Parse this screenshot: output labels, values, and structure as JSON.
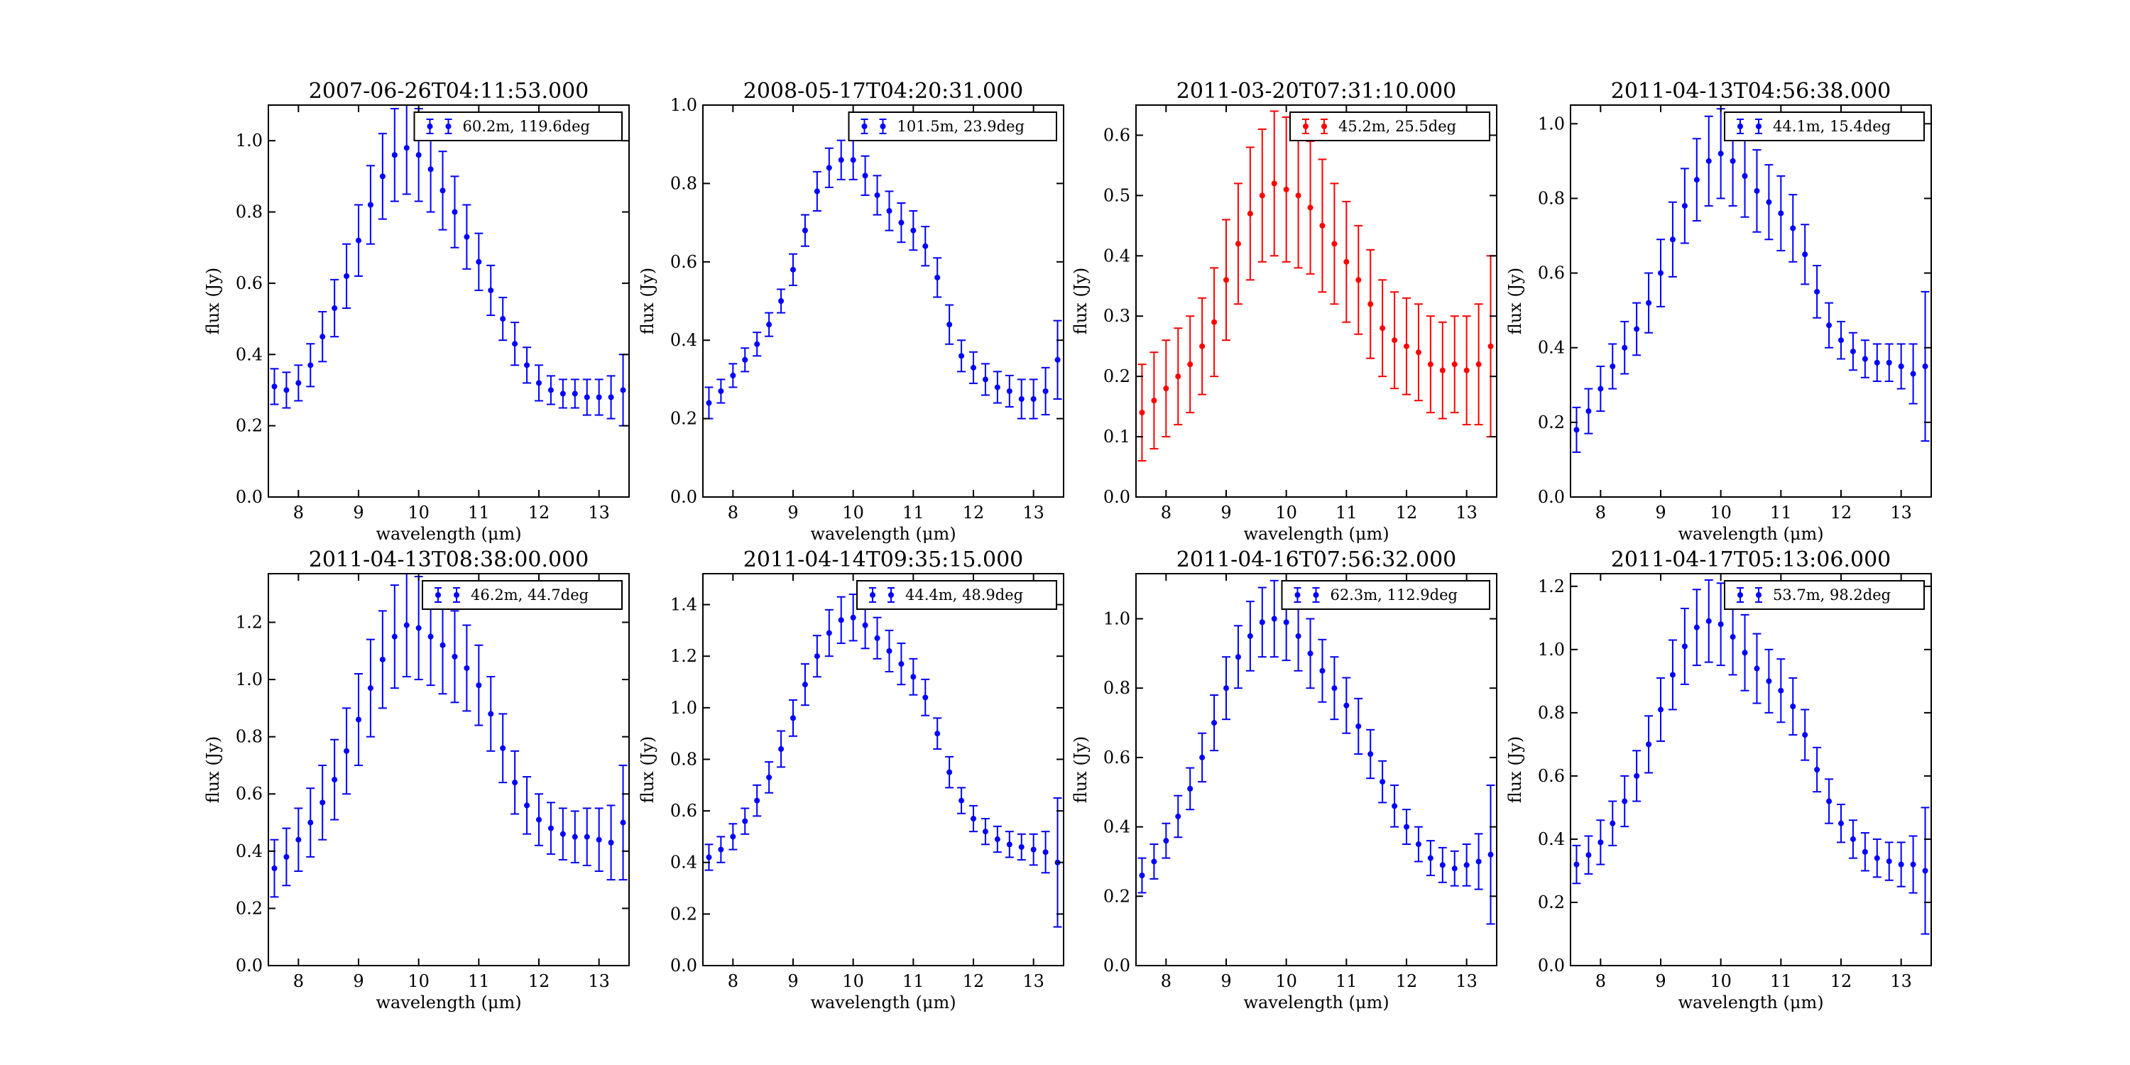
{
  "chart_data": [
    {
      "type": "scatter",
      "title": "2007-06-26T04:11:53.000",
      "xlabel": "wavelength (μm)",
      "ylabel": "flux (Jy)",
      "xlim": [
        7.5,
        13.5
      ],
      "ylim": [
        0.0,
        1.1
      ],
      "xticks": [
        "8",
        "9",
        "10",
        "11",
        "12",
        "13"
      ],
      "yticks": [
        "0.0",
        "0.2",
        "0.4",
        "0.6",
        "0.8",
        "1.0"
      ],
      "grid": false,
      "legend_position": "upper-right",
      "series": [
        {
          "name": "60.2m, 119.6deg",
          "color": "#0000ff",
          "x": [
            7.6,
            7.8,
            8.0,
            8.2,
            8.4,
            8.6,
            8.8,
            9.0,
            9.2,
            9.4,
            9.6,
            9.8,
            10.0,
            10.2,
            10.4,
            10.6,
            10.8,
            11.0,
            11.2,
            11.4,
            11.6,
            11.8,
            12.0,
            12.2,
            12.4,
            12.6,
            12.8,
            13.0,
            13.2,
            13.4
          ],
          "y": [
            0.31,
            0.3,
            0.32,
            0.37,
            0.45,
            0.53,
            0.62,
            0.72,
            0.82,
            0.9,
            0.96,
            0.98,
            0.96,
            0.92,
            0.86,
            0.8,
            0.73,
            0.66,
            0.58,
            0.5,
            0.43,
            0.37,
            0.32,
            0.3,
            0.29,
            0.29,
            0.28,
            0.28,
            0.28,
            0.3
          ],
          "err": [
            0.05,
            0.05,
            0.05,
            0.06,
            0.07,
            0.08,
            0.09,
            0.1,
            0.11,
            0.12,
            0.13,
            0.13,
            0.13,
            0.12,
            0.11,
            0.1,
            0.09,
            0.08,
            0.07,
            0.06,
            0.06,
            0.05,
            0.05,
            0.04,
            0.04,
            0.04,
            0.05,
            0.05,
            0.06,
            0.1
          ]
        }
      ]
    },
    {
      "type": "scatter",
      "title": "2008-05-17T04:20:31.000",
      "xlabel": "wavelength (μm)",
      "ylabel": "flux (Jy)",
      "xlim": [
        7.5,
        13.5
      ],
      "ylim": [
        0.0,
        1.0
      ],
      "xticks": [
        "8",
        "9",
        "10",
        "11",
        "12",
        "13"
      ],
      "yticks": [
        "0.0",
        "0.2",
        "0.4",
        "0.6",
        "0.8",
        "1.0"
      ],
      "grid": false,
      "legend_position": "upper-right",
      "series": [
        {
          "name": "101.5m, 23.9deg",
          "color": "#0000ff",
          "x": [
            7.6,
            7.8,
            8.0,
            8.2,
            8.4,
            8.6,
            8.8,
            9.0,
            9.2,
            9.4,
            9.6,
            9.8,
            10.0,
            10.2,
            10.4,
            10.6,
            10.8,
            11.0,
            11.2,
            11.4,
            11.6,
            11.8,
            12.0,
            12.2,
            12.4,
            12.6,
            12.8,
            13.0,
            13.2,
            13.4
          ],
          "y": [
            0.24,
            0.27,
            0.31,
            0.35,
            0.39,
            0.44,
            0.5,
            0.58,
            0.68,
            0.78,
            0.84,
            0.86,
            0.86,
            0.82,
            0.77,
            0.73,
            0.7,
            0.68,
            0.64,
            0.56,
            0.44,
            0.36,
            0.33,
            0.3,
            0.28,
            0.27,
            0.25,
            0.25,
            0.27,
            0.35
          ],
          "err": [
            0.04,
            0.03,
            0.03,
            0.03,
            0.03,
            0.03,
            0.03,
            0.04,
            0.04,
            0.05,
            0.05,
            0.05,
            0.05,
            0.05,
            0.05,
            0.05,
            0.05,
            0.05,
            0.05,
            0.05,
            0.05,
            0.04,
            0.04,
            0.04,
            0.04,
            0.04,
            0.05,
            0.05,
            0.06,
            0.1
          ]
        }
      ]
    },
    {
      "type": "scatter",
      "title": "2011-03-20T07:31:10.000",
      "xlabel": "wavelength (μm)",
      "ylabel": "flux (Jy)",
      "xlim": [
        7.5,
        13.5
      ],
      "ylim": [
        0.0,
        0.65
      ],
      "xticks": [
        "8",
        "9",
        "10",
        "11",
        "12",
        "13"
      ],
      "yticks": [
        "0.0",
        "0.1",
        "0.2",
        "0.3",
        "0.4",
        "0.5",
        "0.6"
      ],
      "grid": false,
      "legend_position": "upper-right",
      "series": [
        {
          "name": "45.2m, 25.5deg",
          "color": "#ff0000",
          "x": [
            7.6,
            7.8,
            8.0,
            8.2,
            8.4,
            8.6,
            8.8,
            9.0,
            9.2,
            9.4,
            9.6,
            9.8,
            10.0,
            10.2,
            10.4,
            10.6,
            10.8,
            11.0,
            11.2,
            11.4,
            11.6,
            11.8,
            12.0,
            12.2,
            12.4,
            12.6,
            12.8,
            13.0,
            13.2,
            13.4
          ],
          "y": [
            0.14,
            0.16,
            0.18,
            0.2,
            0.22,
            0.25,
            0.29,
            0.36,
            0.42,
            0.47,
            0.5,
            0.52,
            0.51,
            0.5,
            0.48,
            0.45,
            0.42,
            0.39,
            0.36,
            0.32,
            0.28,
            0.26,
            0.25,
            0.24,
            0.22,
            0.21,
            0.22,
            0.21,
            0.22,
            0.25
          ],
          "err": [
            0.08,
            0.08,
            0.08,
            0.08,
            0.08,
            0.08,
            0.09,
            0.1,
            0.1,
            0.11,
            0.11,
            0.12,
            0.12,
            0.12,
            0.11,
            0.11,
            0.1,
            0.1,
            0.09,
            0.09,
            0.08,
            0.08,
            0.08,
            0.08,
            0.08,
            0.08,
            0.08,
            0.09,
            0.1,
            0.15
          ]
        }
      ]
    },
    {
      "type": "scatter",
      "title": "2011-04-13T04:56:38.000",
      "xlabel": "wavelength (μm)",
      "ylabel": "flux (Jy)",
      "xlim": [
        7.5,
        13.5
      ],
      "ylim": [
        0.0,
        1.05
      ],
      "xticks": [
        "8",
        "9",
        "10",
        "11",
        "12",
        "13"
      ],
      "yticks": [
        "0.0",
        "0.2",
        "0.4",
        "0.6",
        "0.8",
        "1.0"
      ],
      "grid": false,
      "legend_position": "upper-right",
      "series": [
        {
          "name": "44.1m, 15.4deg",
          "color": "#0000ff",
          "x": [
            7.6,
            7.8,
            8.0,
            8.2,
            8.4,
            8.6,
            8.8,
            9.0,
            9.2,
            9.4,
            9.6,
            9.8,
            10.0,
            10.2,
            10.4,
            10.6,
            10.8,
            11.0,
            11.2,
            11.4,
            11.6,
            11.8,
            12.0,
            12.2,
            12.4,
            12.6,
            12.8,
            13.0,
            13.2,
            13.4
          ],
          "y": [
            0.18,
            0.23,
            0.29,
            0.35,
            0.4,
            0.45,
            0.52,
            0.6,
            0.69,
            0.78,
            0.85,
            0.9,
            0.92,
            0.9,
            0.86,
            0.82,
            0.79,
            0.76,
            0.72,
            0.65,
            0.55,
            0.46,
            0.42,
            0.39,
            0.37,
            0.36,
            0.36,
            0.35,
            0.33,
            0.35
          ],
          "err": [
            0.06,
            0.06,
            0.06,
            0.06,
            0.07,
            0.07,
            0.08,
            0.09,
            0.1,
            0.1,
            0.11,
            0.12,
            0.12,
            0.12,
            0.11,
            0.11,
            0.1,
            0.1,
            0.09,
            0.08,
            0.07,
            0.06,
            0.05,
            0.05,
            0.05,
            0.05,
            0.05,
            0.06,
            0.08,
            0.2
          ]
        }
      ]
    },
    {
      "type": "scatter",
      "title": "2011-04-13T08:38:00.000",
      "xlabel": "wavelength (μm)",
      "ylabel": "flux (Jy)",
      "xlim": [
        7.5,
        13.5
      ],
      "ylim": [
        0.0,
        1.37
      ],
      "xticks": [
        "8",
        "9",
        "10",
        "11",
        "12",
        "13"
      ],
      "yticks": [
        "0.0",
        "0.2",
        "0.4",
        "0.6",
        "0.8",
        "1.0",
        "1.2"
      ],
      "grid": false,
      "legend_position": "upper-right",
      "series": [
        {
          "name": "46.2m, 44.7deg",
          "color": "#0000ff",
          "x": [
            7.6,
            7.8,
            8.0,
            8.2,
            8.4,
            8.6,
            8.8,
            9.0,
            9.2,
            9.4,
            9.6,
            9.8,
            10.0,
            10.2,
            10.4,
            10.6,
            10.8,
            11.0,
            11.2,
            11.4,
            11.6,
            11.8,
            12.0,
            12.2,
            12.4,
            12.6,
            12.8,
            13.0,
            13.2,
            13.4
          ],
          "y": [
            0.34,
            0.38,
            0.44,
            0.5,
            0.57,
            0.65,
            0.75,
            0.86,
            0.97,
            1.07,
            1.15,
            1.19,
            1.18,
            1.15,
            1.12,
            1.08,
            1.04,
            0.98,
            0.88,
            0.76,
            0.64,
            0.56,
            0.51,
            0.48,
            0.46,
            0.45,
            0.45,
            0.44,
            0.43,
            0.5
          ],
          "err": [
            0.1,
            0.1,
            0.11,
            0.12,
            0.13,
            0.14,
            0.15,
            0.16,
            0.17,
            0.17,
            0.18,
            0.18,
            0.18,
            0.17,
            0.17,
            0.16,
            0.15,
            0.14,
            0.13,
            0.12,
            0.11,
            0.1,
            0.09,
            0.09,
            0.09,
            0.09,
            0.1,
            0.11,
            0.13,
            0.2
          ]
        }
      ]
    },
    {
      "type": "scatter",
      "title": "2011-04-14T09:35:15.000",
      "xlabel": "wavelength (μm)",
      "ylabel": "flux (Jy)",
      "xlim": [
        7.5,
        13.5
      ],
      "ylim": [
        0.0,
        1.52
      ],
      "xticks": [
        "8",
        "9",
        "10",
        "11",
        "12",
        "13"
      ],
      "yticks": [
        "0.0",
        "0.2",
        "0.4",
        "0.6",
        "0.8",
        "1.0",
        "1.2",
        "1.4"
      ],
      "grid": false,
      "legend_position": "upper-right",
      "series": [
        {
          "name": "44.4m, 48.9deg",
          "color": "#0000ff",
          "x": [
            7.6,
            7.8,
            8.0,
            8.2,
            8.4,
            8.6,
            8.8,
            9.0,
            9.2,
            9.4,
            9.6,
            9.8,
            10.0,
            10.2,
            10.4,
            10.6,
            10.8,
            11.0,
            11.2,
            11.4,
            11.6,
            11.8,
            12.0,
            12.2,
            12.4,
            12.6,
            12.8,
            13.0,
            13.2,
            13.4
          ],
          "y": [
            0.42,
            0.45,
            0.5,
            0.56,
            0.64,
            0.73,
            0.84,
            0.96,
            1.09,
            1.2,
            1.29,
            1.34,
            1.35,
            1.32,
            1.27,
            1.22,
            1.17,
            1.12,
            1.04,
            0.9,
            0.75,
            0.64,
            0.57,
            0.52,
            0.49,
            0.47,
            0.46,
            0.45,
            0.44,
            0.4
          ],
          "err": [
            0.05,
            0.05,
            0.05,
            0.05,
            0.06,
            0.06,
            0.07,
            0.07,
            0.08,
            0.08,
            0.09,
            0.09,
            0.09,
            0.09,
            0.08,
            0.08,
            0.08,
            0.07,
            0.07,
            0.06,
            0.06,
            0.05,
            0.05,
            0.05,
            0.05,
            0.05,
            0.05,
            0.06,
            0.08,
            0.25
          ]
        }
      ]
    },
    {
      "type": "scatter",
      "title": "2011-04-16T07:56:32.000",
      "xlabel": "wavelength (μm)",
      "ylabel": "flux (Jy)",
      "xlim": [
        7.5,
        13.5
      ],
      "ylim": [
        0.0,
        1.13
      ],
      "xticks": [
        "8",
        "9",
        "10",
        "11",
        "12",
        "13"
      ],
      "yticks": [
        "0.0",
        "0.2",
        "0.4",
        "0.6",
        "0.8",
        "1.0"
      ],
      "grid": false,
      "legend_position": "upper-right",
      "series": [
        {
          "name": "62.3m, 112.9deg",
          "color": "#0000ff",
          "x": [
            7.6,
            7.8,
            8.0,
            8.2,
            8.4,
            8.6,
            8.8,
            9.0,
            9.2,
            9.4,
            9.6,
            9.8,
            10.0,
            10.2,
            10.4,
            10.6,
            10.8,
            11.0,
            11.2,
            11.4,
            11.6,
            11.8,
            12.0,
            12.2,
            12.4,
            12.6,
            12.8,
            13.0,
            13.2,
            13.4
          ],
          "y": [
            0.26,
            0.3,
            0.36,
            0.43,
            0.51,
            0.6,
            0.7,
            0.8,
            0.89,
            0.95,
            0.99,
            1.0,
            0.99,
            0.95,
            0.9,
            0.85,
            0.8,
            0.75,
            0.69,
            0.61,
            0.53,
            0.46,
            0.4,
            0.35,
            0.31,
            0.29,
            0.28,
            0.29,
            0.3,
            0.32
          ],
          "err": [
            0.05,
            0.05,
            0.05,
            0.06,
            0.06,
            0.07,
            0.08,
            0.09,
            0.09,
            0.1,
            0.1,
            0.11,
            0.11,
            0.1,
            0.1,
            0.09,
            0.09,
            0.08,
            0.08,
            0.07,
            0.06,
            0.06,
            0.05,
            0.05,
            0.05,
            0.05,
            0.05,
            0.06,
            0.08,
            0.2
          ]
        }
      ]
    },
    {
      "type": "scatter",
      "title": "2011-04-17T05:13:06.000",
      "xlabel": "wavelength (μm)",
      "ylabel": "flux (Jy)",
      "xlim": [
        7.5,
        13.5
      ],
      "ylim": [
        0.0,
        1.24
      ],
      "xticks": [
        "8",
        "9",
        "10",
        "11",
        "12",
        "13"
      ],
      "yticks": [
        "0.0",
        "0.2",
        "0.4",
        "0.6",
        "0.8",
        "1.0",
        "1.2"
      ],
      "grid": false,
      "legend_position": "upper-right",
      "series": [
        {
          "name": "53.7m, 98.2deg",
          "color": "#0000ff",
          "x": [
            7.6,
            7.8,
            8.0,
            8.2,
            8.4,
            8.6,
            8.8,
            9.0,
            9.2,
            9.4,
            9.6,
            9.8,
            10.0,
            10.2,
            10.4,
            10.6,
            10.8,
            11.0,
            11.2,
            11.4,
            11.6,
            11.8,
            12.0,
            12.2,
            12.4,
            12.6,
            12.8,
            13.0,
            13.2,
            13.4
          ],
          "y": [
            0.32,
            0.35,
            0.39,
            0.45,
            0.52,
            0.6,
            0.7,
            0.81,
            0.92,
            1.01,
            1.07,
            1.09,
            1.08,
            1.04,
            0.99,
            0.94,
            0.9,
            0.87,
            0.82,
            0.73,
            0.62,
            0.52,
            0.45,
            0.4,
            0.36,
            0.34,
            0.33,
            0.32,
            0.32,
            0.3
          ],
          "err": [
            0.06,
            0.06,
            0.07,
            0.07,
            0.08,
            0.08,
            0.09,
            0.1,
            0.11,
            0.12,
            0.12,
            0.13,
            0.13,
            0.12,
            0.12,
            0.11,
            0.1,
            0.1,
            0.09,
            0.08,
            0.07,
            0.07,
            0.06,
            0.06,
            0.06,
            0.06,
            0.06,
            0.07,
            0.09,
            0.2
          ]
        }
      ]
    }
  ]
}
